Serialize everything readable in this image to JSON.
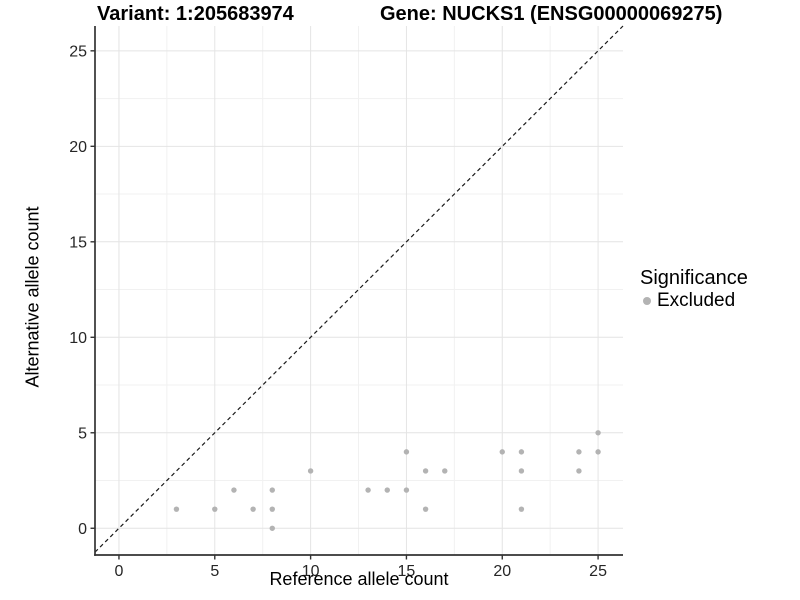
{
  "title": {
    "variant": "Variant: 1:205683974",
    "gene": "Gene: NUCKS1 (ENSG00000069275)"
  },
  "legend": {
    "title": "Significance",
    "items": [
      {
        "label": "Excluded",
        "color": "#b3b3b3"
      }
    ]
  },
  "chart_data": {
    "type": "scatter",
    "title": "Variant: 1:205683974   Gene: NUCKS1 (ENSG00000069275)",
    "xlabel": "Reference allele count",
    "ylabel": "Alternative allele count",
    "xlim": [
      -1.25,
      26.3
    ],
    "ylim": [
      -1.4,
      26.3
    ],
    "xticks": [
      0,
      5,
      10,
      15,
      20,
      25
    ],
    "yticks": [
      0,
      5,
      10,
      15,
      20,
      25
    ],
    "minor_xticks": [
      2.5,
      7.5,
      12.5,
      17.5,
      22.5
    ],
    "minor_yticks": [
      2.5,
      7.5,
      12.5,
      17.5,
      22.5
    ],
    "grid": "major+minor",
    "legend_position": "right",
    "series": [
      {
        "name": "Excluded",
        "color": "#b3b3b3",
        "marker": "circle",
        "points": [
          [
            3,
            1
          ],
          [
            5,
            1
          ],
          [
            6,
            2
          ],
          [
            7,
            1
          ],
          [
            8,
            0
          ],
          [
            8,
            1
          ],
          [
            8,
            2
          ],
          [
            10,
            3
          ],
          [
            13,
            2
          ],
          [
            14,
            2
          ],
          [
            15,
            2
          ],
          [
            15,
            4
          ],
          [
            16,
            1
          ],
          [
            16,
            3
          ],
          [
            17,
            3
          ],
          [
            20,
            4
          ],
          [
            21,
            1
          ],
          [
            21,
            3
          ],
          [
            21,
            4
          ],
          [
            24,
            3
          ],
          [
            24,
            4
          ],
          [
            25,
            4
          ],
          [
            25,
            5
          ]
        ]
      }
    ],
    "reference_line": {
      "type": "identity",
      "slope": 1,
      "intercept": 0,
      "style": "dashed",
      "color": "#1a1a1a"
    }
  },
  "colors": {
    "grid_major": "#e4e4e4",
    "grid_minor": "#f1f1f1",
    "axis": "#333333",
    "tick_text": "#262626",
    "point": "#b3b3b3",
    "background": "#ffffff",
    "text": "#000000"
  }
}
